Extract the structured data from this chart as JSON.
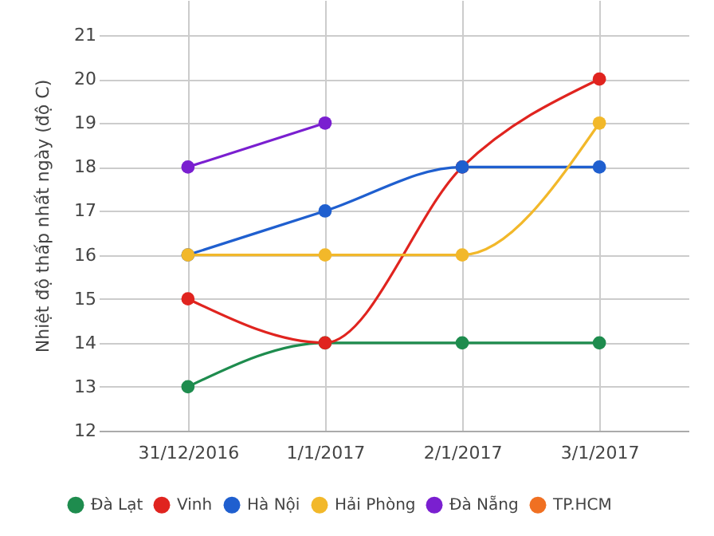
{
  "chart_data": {
    "type": "line",
    "ylabel": "Nhiệt độ thấp nhất ngày (độ C)",
    "categories": [
      "31/12/2016",
      "1/1/2017",
      "2/1/2017",
      "3/1/2017"
    ],
    "series": [
      {
        "name": "Đà Lạt",
        "color": "#1e8c4e",
        "values": [
          13,
          14,
          14,
          14
        ]
      },
      {
        "name": "Vinh",
        "color": "#e0241f",
        "values": [
          15,
          14,
          18,
          20
        ]
      },
      {
        "name": "Hà Nội",
        "color": "#1f5fcf",
        "values": [
          16,
          17,
          18,
          18
        ]
      },
      {
        "name": "Hải Phòng",
        "color": "#f2b82a",
        "values": [
          16,
          16,
          16,
          19
        ]
      },
      {
        "name": "Đà Nẵng",
        "color": "#7a1fd0",
        "values": [
          18,
          19,
          null,
          null
        ]
      },
      {
        "name": "TP.HCM",
        "color": "#f07022",
        "values": [
          null,
          null,
          null,
          null
        ]
      }
    ],
    "ylim": [
      12,
      21.8
    ],
    "yticks": [
      12,
      13,
      14,
      15,
      16,
      17,
      18,
      19,
      20,
      21
    ],
    "grid": true,
    "legend": "bottom",
    "marker": "circle",
    "line_style": "solid"
  }
}
